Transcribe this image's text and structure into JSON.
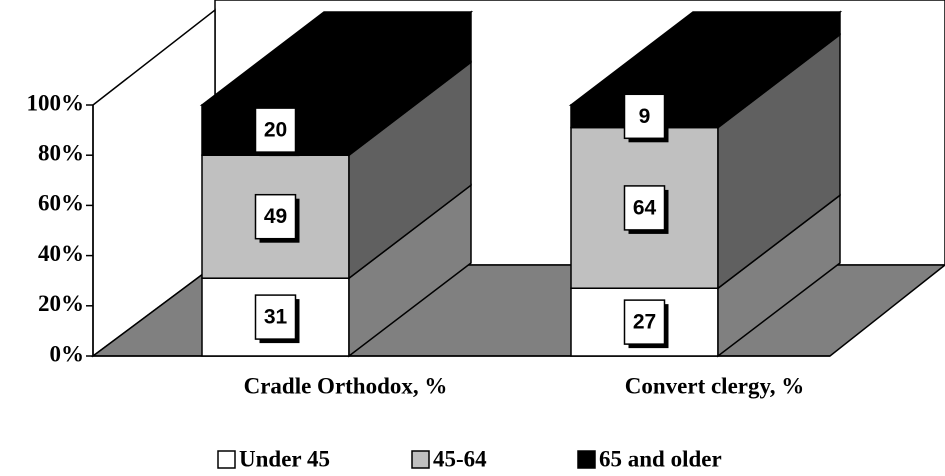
{
  "chart_data": {
    "type": "stacked-bar-3d",
    "categories": [
      "Cradle Orthodox, %",
      "Convert clergy, %"
    ],
    "series": [
      {
        "name": "Under 45",
        "color": "#ffffff",
        "values": [
          31,
          27
        ]
      },
      {
        "name": "45-64",
        "color": "#c0c0c0",
        "values": [
          49,
          64
        ]
      },
      {
        "name": "65 and older",
        "color": "#000000",
        "values": [
          20,
          9
        ]
      }
    ],
    "ylim": [
      0,
      100
    ],
    "yticks": [
      {
        "value": 0,
        "label": "0%"
      },
      {
        "value": 20,
        "label": "20%"
      },
      {
        "value": 40,
        "label": "40%"
      },
      {
        "value": 60,
        "label": "60%"
      },
      {
        "value": 80,
        "label": "80%"
      },
      {
        "value": 100,
        "label": "100%"
      }
    ],
    "legend": "bottom"
  }
}
